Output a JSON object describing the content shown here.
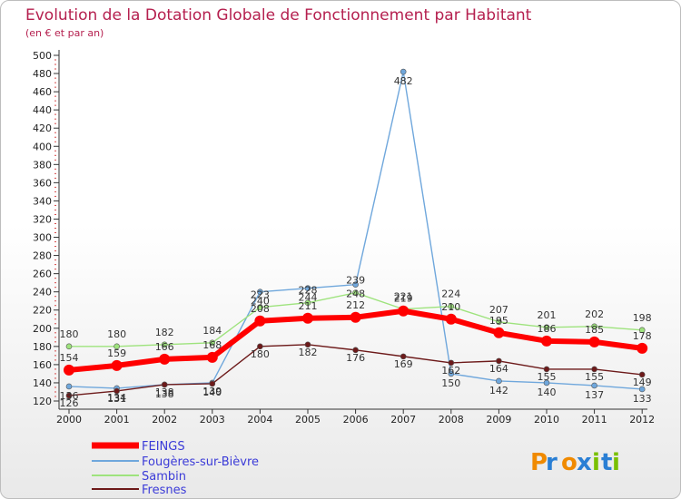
{
  "chart_data": {
    "type": "line",
    "title": "Evolution de la Dotation Globale de Fonctionnement par Habitant",
    "subtitle": "(en € et par an)",
    "x": [
      "2000",
      "2001",
      "2002",
      "2003",
      "2004",
      "2005",
      "2006",
      "2007",
      "2008",
      "2009",
      "2010",
      "2011",
      "2012"
    ],
    "ylim": [
      120,
      500
    ],
    "yticks": [
      120,
      140,
      160,
      180,
      200,
      220,
      240,
      260,
      280,
      300,
      320,
      340,
      360,
      380,
      400,
      420,
      440,
      460,
      480,
      500
    ],
    "grid": false,
    "legend_position": "bottom-left",
    "series": [
      {
        "name": "FEINGS",
        "color": "#ff0000",
        "values": [
          154,
          159,
          166,
          168,
          208,
          211,
          212,
          219,
          210,
          195,
          186,
          185,
          178
        ]
      },
      {
        "name": "Fougères-sur-Bièvre",
        "color": "#6fa7dc",
        "values": [
          136,
          134,
          138,
          140,
          240,
          244,
          248,
          482,
          150,
          142,
          140,
          137,
          133
        ]
      },
      {
        "name": "Sambin",
        "color": "#9ee37d",
        "values": [
          180,
          180,
          182,
          184,
          223,
          228,
          239,
          221,
          224,
          207,
          201,
          202,
          198
        ]
      },
      {
        "name": "Fresnes",
        "color": "#6d1a1a",
        "values": [
          126,
          131,
          138,
          139,
          180,
          182,
          176,
          169,
          162,
          164,
          155,
          155,
          149
        ]
      }
    ]
  },
  "brand": {
    "name": "Proxiti"
  }
}
